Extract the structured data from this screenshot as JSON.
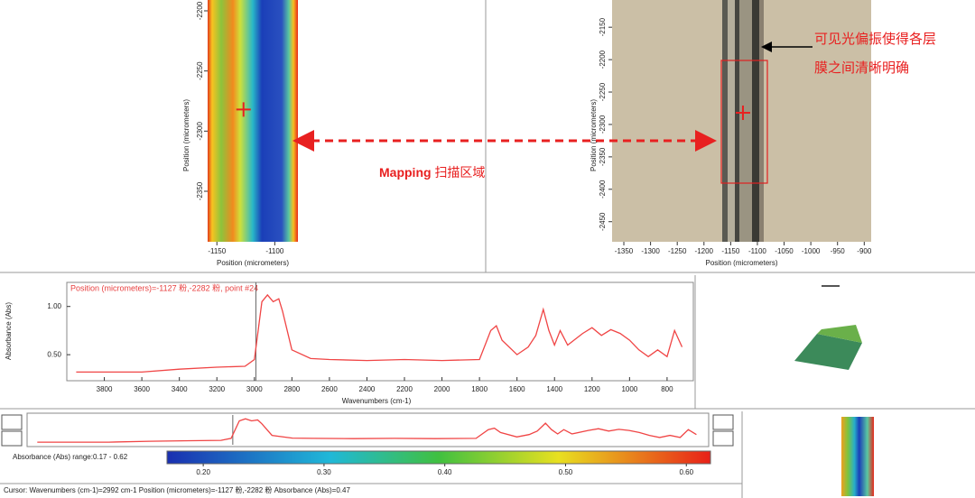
{
  "left_map": {
    "ylabel": "Position (micrometers)",
    "xlabel": "Position (micrometers)",
    "xlim": [
      -1158,
      -1080
    ],
    "ylim": [
      -2392,
      -2191
    ],
    "xticks": [
      -1150,
      -1100
    ],
    "yticks": [
      -2200,
      -2250,
      -2300,
      -2350
    ]
  },
  "photo": {
    "ylabel": "Position (micrometers)",
    "xlabel": "Position (micrometers)",
    "xlim": [
      -1372,
      -887
    ],
    "ylim": [
      -2481,
      -2108
    ],
    "xticks": [
      -1350,
      -1300,
      -1250,
      -1200,
      -1150,
      -1100,
      -1050,
      -1000,
      -950,
      -900
    ],
    "yticks": [
      -2150,
      -2200,
      -2250,
      -2300,
      -2350,
      -2400,
      -2450
    ]
  },
  "marker": {
    "x": -1127,
    "y": -2282
  },
  "annotations": {
    "polarization": [
      "可见光偏振使得各层",
      "膜之间清晰明确"
    ],
    "mapping_bold": "Mapping",
    "mapping_text": "扫描区域"
  },
  "chart_data": {
    "type": "line",
    "title": "Position (micrometers)=-1127 粉,-2282 粉, point #24",
    "ylabel": "Absorbance (Abs)",
    "xlabel": "Wavenumbers (cm-1)",
    "x": [
      3950,
      3800,
      3600,
      3400,
      3200,
      3050,
      3000,
      2960,
      2930,
      2900,
      2870,
      2850,
      2800,
      2700,
      2600,
      2400,
      2200,
      2000,
      1800,
      1740,
      1710,
      1680,
      1600,
      1540,
      1500,
      1460,
      1430,
      1400,
      1370,
      1330,
      1250,
      1200,
      1150,
      1100,
      1050,
      1000,
      950,
      900,
      850,
      800,
      760,
      720
    ],
    "series": [
      {
        "color": "#f04545",
        "values": [
          0.32,
          0.32,
          0.32,
          0.35,
          0.37,
          0.38,
          0.45,
          1.05,
          1.12,
          1.05,
          1.08,
          0.95,
          0.55,
          0.46,
          0.45,
          0.44,
          0.45,
          0.44,
          0.45,
          0.75,
          0.8,
          0.65,
          0.5,
          0.58,
          0.7,
          0.97,
          0.75,
          0.6,
          0.75,
          0.6,
          0.72,
          0.78,
          0.7,
          0.76,
          0.72,
          0.65,
          0.55,
          0.48,
          0.55,
          0.48,
          0.75,
          0.58
        ]
      }
    ],
    "xlim": [
      4000,
      660
    ],
    "ylim": [
      0.23,
      1.25
    ],
    "xticks": [
      3800,
      3600,
      3400,
      3200,
      3000,
      2800,
      2600,
      2400,
      2200,
      2000,
      1800,
      1600,
      1400,
      1200,
      1000,
      800
    ],
    "yticks": [
      {
        "value": 1,
        "label": "1.00"
      },
      {
        "value": 0.5,
        "label": "0.50"
      }
    ],
    "cursor_x": 2992
  },
  "colorbar": {
    "label": "Absorbance (Abs) range:0.17 - 0.62",
    "clim": [
      0.17,
      0.62
    ],
    "ticks": [
      {
        "value": 0.2,
        "label": "0.20"
      },
      {
        "value": 0.3,
        "label": "0.30"
      },
      {
        "value": 0.4,
        "label": "0.40"
      },
      {
        "value": 0.5,
        "label": "0.50"
      },
      {
        "value": 0.6,
        "label": "0.60"
      }
    ]
  },
  "status": "Cursor: Wavenumbers (cm-1)=2992 cm-1  Position (micrometers)=-1127 粉,-2282 粉  Absorbance (Abs)=0.47"
}
